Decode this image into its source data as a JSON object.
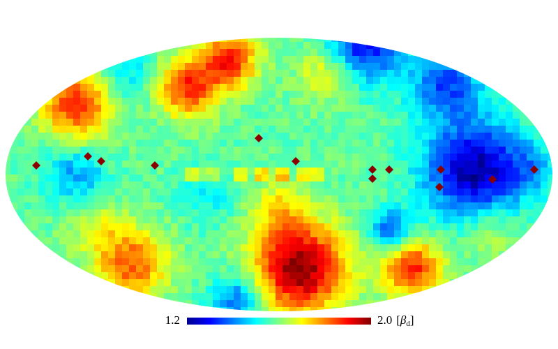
{
  "colorbar": {
    "min": 1.2,
    "max": {
      "value": 2.0,
      "label": "2.0"
    },
    "bracket_open": "[",
    "symbol": "β",
    "subscript": "d",
    "bracket_close": "]",
    "colormap": "jet"
  }
}
